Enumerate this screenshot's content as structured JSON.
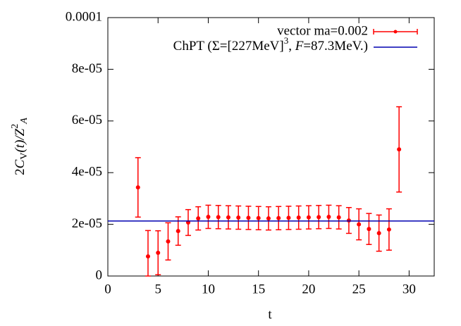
{
  "chart_data": {
    "type": "scatter",
    "xlabel": "t",
    "ylabel_parts": [
      "2",
      "C",
      "V",
      "(t)/",
      "Z",
      "2",
      "A"
    ],
    "xlim": [
      0,
      32.5
    ],
    "xticks": [
      0,
      5,
      10,
      15,
      20,
      25,
      30
    ],
    "ylim": [
      0,
      0.0001
    ],
    "yticks": [
      0,
      {
        "value": 2e-05,
        "label": "2e-05"
      },
      {
        "value": 4e-05,
        "label": "4e-05"
      },
      {
        "value": 6e-05,
        "label": "6e-05"
      },
      {
        "value": 8e-05,
        "label": "8e-05"
      },
      {
        "value": 0.0001,
        "label": "0.0001"
      }
    ],
    "legend": "top-right",
    "series": [
      {
        "name": "vector ma=0.002",
        "color": "#ff0000",
        "x": [
          3,
          4,
          5,
          6,
          7,
          8,
          9,
          10,
          11,
          12,
          13,
          14,
          15,
          16,
          17,
          18,
          19,
          20,
          21,
          22,
          23,
          24,
          25,
          26,
          27,
          28,
          29
        ],
        "values": [
          3.43e-05,
          7.6e-06,
          9e-06,
          1.34e-05,
          1.74e-05,
          2.07e-05,
          2.23e-05,
          2.29e-05,
          2.28e-05,
          2.27e-05,
          2.26e-05,
          2.25e-05,
          2.24e-05,
          2.23e-05,
          2.24e-05,
          2.25e-05,
          2.26e-05,
          2.27e-05,
          2.28e-05,
          2.29e-05,
          2.27e-05,
          2.15e-05,
          2e-05,
          1.82e-05,
          1.66e-05,
          1.8e-05,
          4.9e-05
        ],
        "errors": [
          1.15e-05,
          1e-05,
          8.5e-06,
          7.2e-06,
          5.5e-06,
          5e-06,
          4.5e-06,
          4.5e-06,
          4.5e-06,
          4.5e-06,
          4.5e-06,
          4.5e-06,
          4.5e-06,
          4.5e-06,
          4.5e-06,
          4.5e-06,
          4.5e-06,
          4.5e-06,
          4.5e-06,
          4.5e-06,
          4.5e-06,
          5e-06,
          6e-06,
          6e-06,
          7e-06,
          8e-06,
          1.65e-05
        ]
      },
      {
        "name_parts": [
          "ChPT (Σ=[227MeV]",
          "3",
          ", ",
          "F",
          "=87.3MeV.)"
        ],
        "color": "#0000b0",
        "type": "hline",
        "value": 2.13e-05
      }
    ]
  }
}
